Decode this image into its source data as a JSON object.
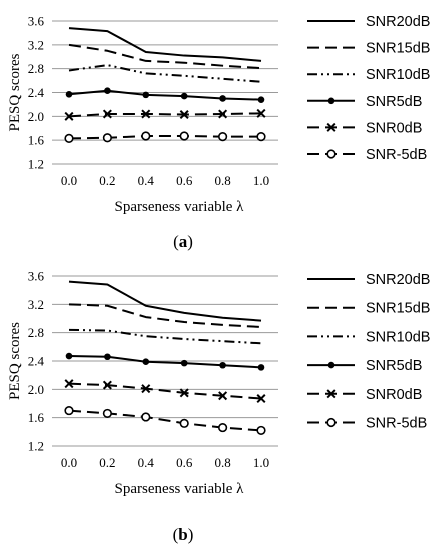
{
  "chart_data": [
    {
      "type": "line",
      "caption": "(a)",
      "caption_parts": [
        "(",
        "a",
        ")"
      ],
      "xlabel": "Sparseness variable λ",
      "ylabel": "PESQ scores",
      "x": [
        0.0,
        0.2,
        0.4,
        0.6,
        0.8,
        1.0
      ],
      "x_tick_labels": [
        "0.0",
        "0.2",
        "0.4",
        "0.6",
        "0.8",
        "1.0"
      ],
      "yticks": [
        1.2,
        1.6,
        2.0,
        2.4,
        2.8,
        3.2,
        3.6
      ],
      "y_tick_labels": [
        "1.2",
        "1.6",
        "2.0",
        "2.4",
        "2.8",
        "3.2",
        "3.6"
      ],
      "ylim": [
        1.2,
        3.6
      ],
      "grid": "horizontal",
      "legend_position": "right",
      "series": [
        {
          "name": "SNR20dB",
          "style": "solid",
          "marker": "none",
          "values": [
            3.48,
            3.43,
            3.08,
            3.02,
            2.99,
            2.93
          ]
        },
        {
          "name": "SNR15dB",
          "style": "dash",
          "marker": "none",
          "values": [
            3.2,
            3.1,
            2.93,
            2.9,
            2.85,
            2.81
          ]
        },
        {
          "name": "SNR10dB",
          "style": "dash-dot-dot",
          "marker": "none",
          "values": [
            2.77,
            2.86,
            2.72,
            2.68,
            2.63,
            2.58
          ]
        },
        {
          "name": "SNR5dB",
          "style": "solid",
          "marker": "dot",
          "values": [
            2.37,
            2.43,
            2.36,
            2.34,
            2.3,
            2.28
          ]
        },
        {
          "name": "SNR0dB",
          "style": "dash",
          "marker": "x",
          "values": [
            2.0,
            2.04,
            2.04,
            2.03,
            2.04,
            2.05
          ]
        },
        {
          "name": "SNR-5dB",
          "style": "dash",
          "marker": "circle",
          "values": [
            1.63,
            1.64,
            1.67,
            1.67,
            1.66,
            1.66
          ]
        }
      ]
    },
    {
      "type": "line",
      "caption": "(b)",
      "caption_parts": [
        "(",
        "b",
        ")"
      ],
      "xlabel": "Sparseness variable λ",
      "ylabel": "PESQ scores",
      "x": [
        0.0,
        0.2,
        0.4,
        0.6,
        0.8,
        1.0
      ],
      "x_tick_labels": [
        "0.0",
        "0.2",
        "0.4",
        "0.6",
        "0.8",
        "1.0"
      ],
      "yticks": [
        1.2,
        1.6,
        2.0,
        2.4,
        2.8,
        3.2,
        3.6
      ],
      "y_tick_labels": [
        "1.2",
        "1.6",
        "2.0",
        "2.4",
        "2.8",
        "3.2",
        "3.6"
      ],
      "ylim": [
        1.2,
        3.6
      ],
      "grid": "horizontal",
      "legend_position": "right",
      "series": [
        {
          "name": "SNR20dB",
          "style": "solid",
          "marker": "none",
          "values": [
            3.52,
            3.48,
            3.18,
            3.08,
            3.01,
            2.97
          ]
        },
        {
          "name": "SNR15dB",
          "style": "dash",
          "marker": "none",
          "values": [
            3.2,
            3.18,
            3.02,
            2.95,
            2.91,
            2.88
          ]
        },
        {
          "name": "SNR10dB",
          "style": "dash-dot-dot",
          "marker": "none",
          "values": [
            2.84,
            2.83,
            2.75,
            2.71,
            2.68,
            2.65
          ]
        },
        {
          "name": "SNR5dB",
          "style": "solid",
          "marker": "dot",
          "values": [
            2.47,
            2.46,
            2.39,
            2.37,
            2.34,
            2.31
          ]
        },
        {
          "name": "SNR0dB",
          "style": "dash",
          "marker": "x",
          "values": [
            2.08,
            2.06,
            2.01,
            1.95,
            1.91,
            1.87
          ]
        },
        {
          "name": "SNR-5dB",
          "style": "dash",
          "marker": "circle",
          "values": [
            1.7,
            1.66,
            1.61,
            1.52,
            1.46,
            1.42
          ]
        }
      ]
    }
  ]
}
